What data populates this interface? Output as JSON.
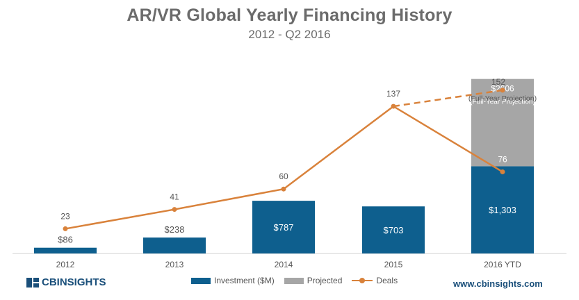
{
  "chart_data": {
    "type": "bar",
    "title": "AR/VR Global Yearly Financing History",
    "subtitle": "2012 - Q2 2016",
    "categories": [
      "2012",
      "2013",
      "2014",
      "2015",
      "2016 YTD"
    ],
    "series": [
      {
        "name": "Investment ($M)",
        "type": "bar",
        "color": "#0e5f8e",
        "values": [
          86,
          238,
          787,
          703,
          1303
        ],
        "labels": [
          "$86",
          "$238",
          "$787",
          "$703",
          "$1,303"
        ]
      },
      {
        "name": "Projected",
        "type": "bar-stacked",
        "color": "#a6a6a6",
        "values": [
          null,
          null,
          null,
          null,
          1303
        ],
        "labels": [
          "",
          "",
          "",
          "",
          "$2606"
        ],
        "note": "(Full-Year Projection)"
      },
      {
        "name": "Deals",
        "type": "line",
        "axis": "secondary",
        "color": "#d9823b",
        "values": [
          23,
          41,
          60,
          137,
          76
        ],
        "labels": [
          "23",
          "41",
          "60",
          "137",
          "76"
        ]
      }
    ],
    "projection": {
      "from_category": "2015",
      "to_category": "2016 YTD",
      "from_value": 137,
      "value": 152,
      "label": "152",
      "note": "(Full-Year Projection)",
      "style": "dashed"
    },
    "ylim_investment": [
      0,
      3080
    ],
    "ylim_deals": [
      0,
      192
    ],
    "grid": false,
    "legend_position": "bottom"
  },
  "footer": {
    "brand": "CBINSIGHTS",
    "site": "www.cbinsights.com"
  }
}
